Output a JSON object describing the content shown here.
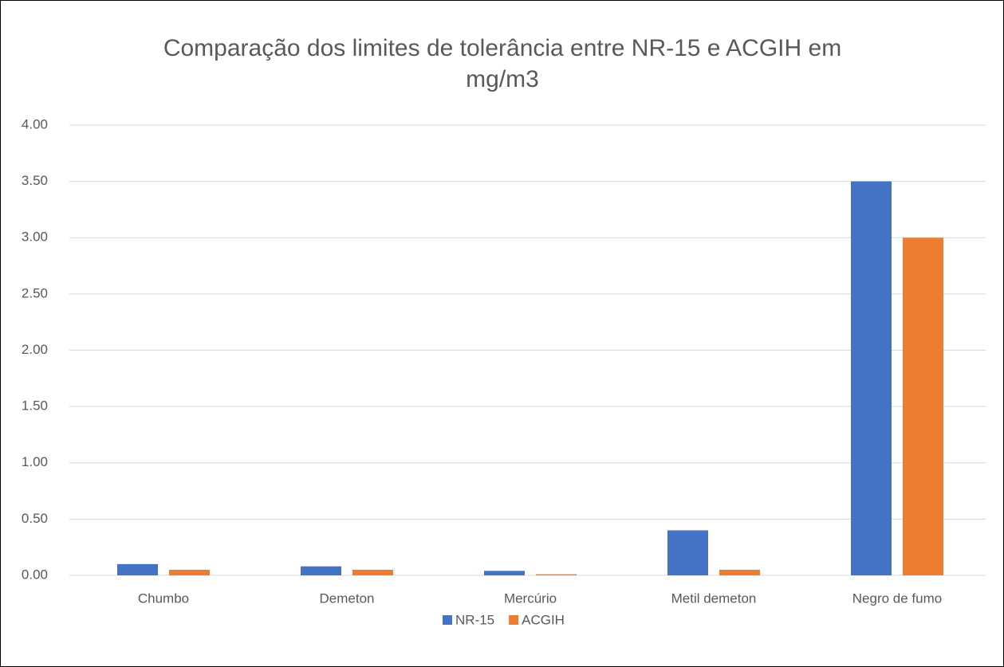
{
  "chart_data": {
    "type": "bar",
    "title": "Comparação dos limites de tolerância entre NR-15 e ACGIH em mg/m3",
    "categories": [
      "Chumbo",
      "Demeton",
      "Mercúrio",
      "Metil demeton",
      "Negro de fumo"
    ],
    "series": [
      {
        "name": "NR-15",
        "color": "#4472c4",
        "values": [
          0.1,
          0.08,
          0.04,
          0.4,
          3.5
        ]
      },
      {
        "name": "ACGIH",
        "color": "#ed7d31",
        "values": [
          0.05,
          0.05,
          0.01,
          0.05,
          3.0
        ]
      }
    ],
    "ylim": [
      0,
      4
    ],
    "yticks": [
      {
        "value": 0,
        "label": "0.00"
      },
      {
        "value": 0.5,
        "label": "0.50"
      },
      {
        "value": 1,
        "label": "1.00"
      },
      {
        "value": 1.5,
        "label": "1.50"
      },
      {
        "value": 2,
        "label": "2.00"
      },
      {
        "value": 2.5,
        "label": "2.50"
      },
      {
        "value": 3,
        "label": "3.00"
      },
      {
        "value": 3.5,
        "label": "3.50"
      },
      {
        "value": 4,
        "label": "4.00"
      }
    ],
    "grid": true,
    "legend": "bottom"
  }
}
